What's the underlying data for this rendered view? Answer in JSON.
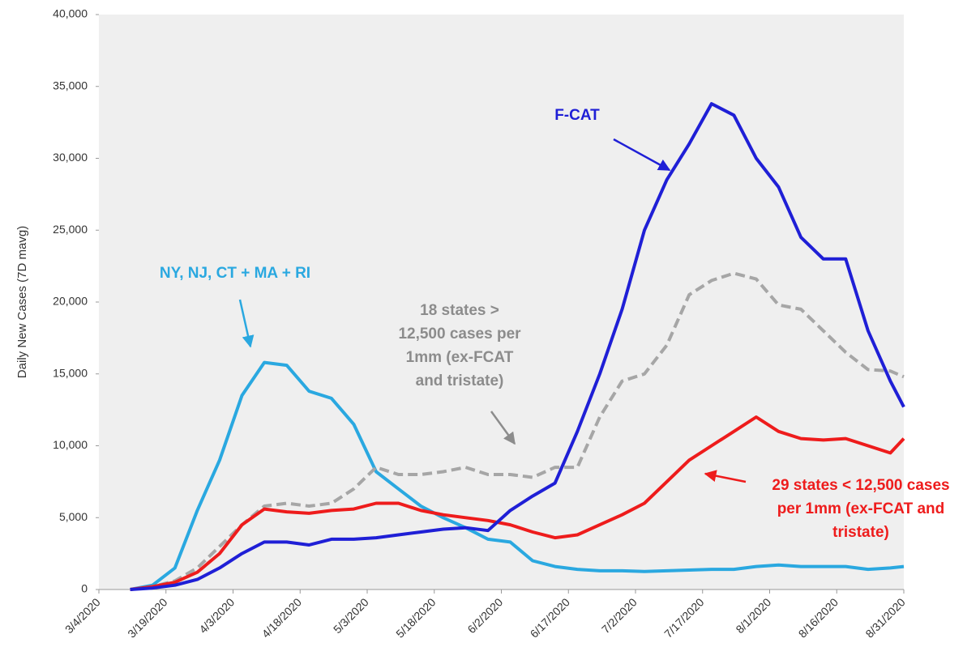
{
  "chart_data": {
    "type": "line",
    "y_label": "Daily New Cases (7D mavg)",
    "x": [
      "3/11/2020",
      "3/16/2020",
      "3/21/2020",
      "3/26/2020",
      "3/31/2020",
      "4/5/2020",
      "4/10/2020",
      "4/15/2020",
      "4/20/2020",
      "4/25/2020",
      "4/30/2020",
      "5/5/2020",
      "5/10/2020",
      "5/15/2020",
      "5/20/2020",
      "5/25/2020",
      "5/30/2020",
      "6/4/2020",
      "6/9/2020",
      "6/14/2020",
      "6/19/2020",
      "6/24/2020",
      "6/29/2020",
      "7/4/2020",
      "7/9/2020",
      "7/14/2020",
      "7/19/2020",
      "7/24/2020",
      "7/29/2020",
      "8/3/2020",
      "8/8/2020",
      "8/13/2020",
      "8/18/2020",
      "8/23/2020",
      "8/28/2020",
      "8/31/2020"
    ],
    "xlim": [
      "3/4/2020",
      "8/31/2020"
    ],
    "xticks": [
      "3/4/2020",
      "3/19/2020",
      "4/3/2020",
      "4/18/2020",
      "5/3/2020",
      "5/18/2020",
      "6/2/2020",
      "6/17/2020",
      "7/2/2020",
      "7/17/2020",
      "8/1/2020",
      "8/16/2020",
      "8/31/2020"
    ],
    "ylim": [
      0,
      40000
    ],
    "yticks": [
      0,
      {
        "value": 5000,
        "label": "5,000"
      },
      {
        "value": 10000,
        "label": "10,000"
      },
      {
        "value": 15000,
        "label": "15,000"
      },
      {
        "value": 20000,
        "label": "20,000"
      },
      {
        "value": 25000,
        "label": "25,000"
      },
      {
        "value": 30000,
        "label": "30,000"
      },
      {
        "value": 35000,
        "label": "35,000"
      },
      {
        "value": 40000,
        "label": "40,000"
      }
    ],
    "series": [
      {
        "color": "#2aa8e0",
        "dashed": false,
        "values": [
          0,
          300,
          1500,
          5500,
          9000,
          13500,
          15800,
          15600,
          13800,
          13300,
          11500,
          8200,
          7000,
          5800,
          5000,
          4300,
          3500,
          3300,
          2000,
          1600,
          1400,
          1300,
          1300,
          1250,
          1300,
          1350,
          1400,
          1400,
          1600,
          1700,
          1600,
          1600,
          1600,
          1400,
          1500,
          1600
        ]
      },
      {
        "color": "#a6a6a6",
        "dashed": true,
        "values": [
          0,
          200,
          600,
          1500,
          3000,
          4500,
          5800,
          6000,
          5800,
          6000,
          7000,
          8500,
          8000,
          8000,
          8200,
          8500,
          8000,
          8000,
          7800,
          8500,
          8500,
          12000,
          14500,
          15000,
          17000,
          20500,
          21500,
          22000,
          21600,
          19800,
          19500,
          18000,
          16500,
          15300,
          15200,
          14800
        ]
      },
      {
        "color": "#ee1c1c",
        "dashed": false,
        "values": [
          0,
          200,
          500,
          1200,
          2500,
          4500,
          5600,
          5400,
          5300,
          5500,
          5600,
          6000,
          6000,
          5500,
          5200,
          5000,
          4800,
          4500,
          4000,
          3600,
          3800,
          4500,
          5200,
          6000,
          7500,
          9000,
          10000,
          11000,
          12000,
          11000,
          10500,
          10400,
          10500,
          10000,
          9500,
          10500
        ]
      },
      {
        "color": "#1f1fd6",
        "dashed": false,
        "values": [
          0,
          100,
          300,
          700,
          1500,
          2500,
          3300,
          3300,
          3100,
          3500,
          3500,
          3600,
          3800,
          4000,
          4200,
          4300,
          4100,
          5500,
          6500,
          7400,
          11000,
          15000,
          19500,
          25000,
          28500,
          31000,
          33800,
          33000,
          30000,
          28000,
          24500,
          23000,
          23000,
          18000,
          14500,
          12700
        ]
      }
    ],
    "annotations": [
      {
        "lines": [
          "NY, NJ, CT + MA + RI"
        ],
        "color": "#2aa8e0"
      },
      {
        "lines": [
          "18 states >",
          "12,500 cases per",
          "1mm (ex-FCAT",
          "and tristate)"
        ],
        "color": "#8c8c8c"
      },
      {
        "lines": [
          "F-CAT"
        ],
        "color": "#1f1fd6"
      },
      {
        "lines": [
          "29 states < 12,500 cases",
          "per 1mm (ex-FCAT and",
          "tristate)"
        ],
        "color": "#ee1c1c"
      }
    ],
    "grid": false
  }
}
